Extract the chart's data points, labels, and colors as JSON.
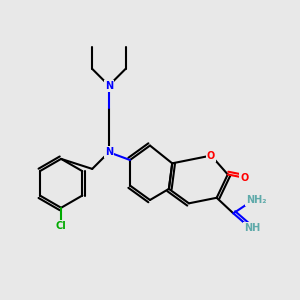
{
  "background_color": "#e8e8e8",
  "bond_color": "#000000",
  "atom_colors": {
    "N": "#0000ff",
    "O": "#ff0000",
    "Cl": "#00aa00",
    "H": "#5faaaa",
    "C": "#000000"
  },
  "title": "",
  "figsize": [
    3.0,
    3.0
  ],
  "dpi": 100
}
